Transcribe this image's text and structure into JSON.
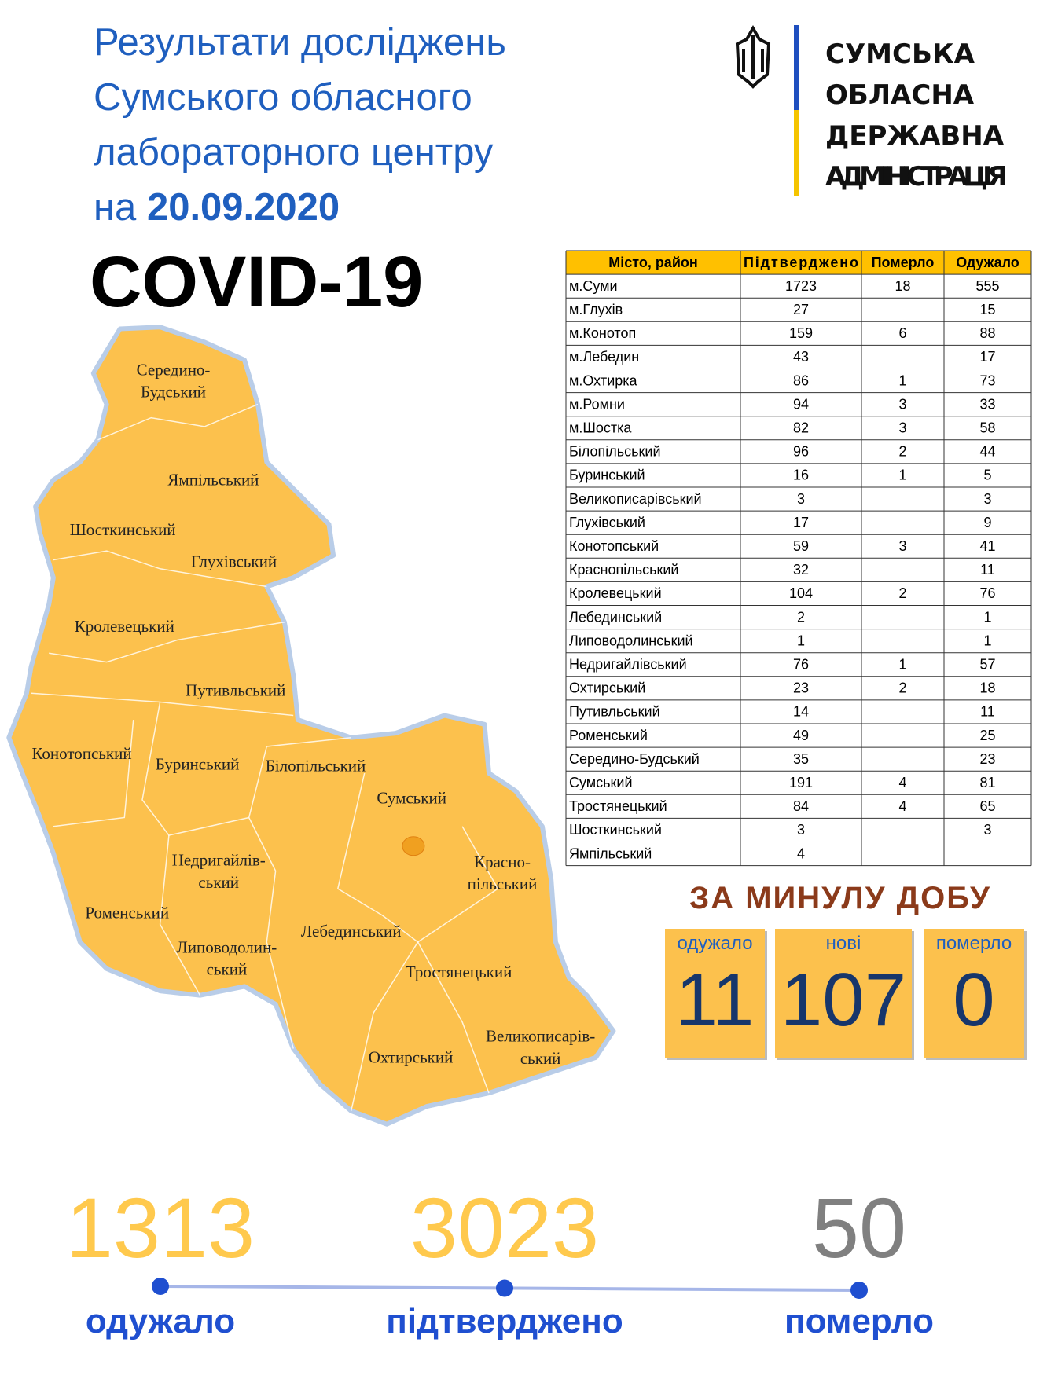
{
  "header": {
    "title_lines": [
      "Результати досліджень",
      "Сумського обласного",
      "лабораторного центру"
    ],
    "date_prefix": "на",
    "date": "20.09.2020",
    "covid": "COVID-19"
  },
  "logo": {
    "lines": [
      "СУМСЬКА",
      "ОБЛАСНА",
      "ДЕРЖАВНА",
      "АДМІНІСТРАЦІЯ"
    ]
  },
  "table": {
    "columns": [
      "Місто, район",
      "Підтверджено",
      "Померло",
      "Одужало"
    ],
    "rows": [
      [
        "м.Суми",
        1723,
        18,
        555
      ],
      [
        "м.Глухів",
        27,
        null,
        15
      ],
      [
        "м.Конотоп",
        159,
        6,
        88
      ],
      [
        "м.Лебедин",
        43,
        null,
        17
      ],
      [
        "м.Охтирка",
        86,
        1,
        73
      ],
      [
        "м.Ромни",
        94,
        3,
        33
      ],
      [
        "м.Шостка",
        82,
        3,
        58
      ],
      [
        "Білопільський",
        96,
        2,
        44
      ],
      [
        "Буринський",
        16,
        1,
        5
      ],
      [
        "Великописарівський",
        3,
        null,
        3
      ],
      [
        "Глухівський",
        17,
        null,
        9
      ],
      [
        "Конотопський",
        59,
        3,
        41
      ],
      [
        "Краснопільський",
        32,
        null,
        11
      ],
      [
        "Кролевецький",
        104,
        2,
        76
      ],
      [
        "Лебединський",
        2,
        null,
        1
      ],
      [
        "Липоводолинський",
        1,
        null,
        1
      ],
      [
        "Недригайлівський",
        76,
        1,
        57
      ],
      [
        "Охтирський",
        23,
        2,
        18
      ],
      [
        "Путивльський",
        14,
        null,
        11
      ],
      [
        "Роменський",
        49,
        null,
        25
      ],
      [
        "Середино-Будський",
        35,
        null,
        23
      ],
      [
        "Сумський",
        191,
        4,
        81
      ],
      [
        "Тростянецький",
        84,
        4,
        65
      ],
      [
        "Шосткинський",
        3,
        null,
        3
      ],
      [
        "Ямпільський",
        4,
        null,
        null
      ]
    ]
  },
  "daily": {
    "title": "ЗА МИНУЛУ ДОБУ",
    "boxes": [
      {
        "label": "одужало",
        "value": 11
      },
      {
        "label": "нові",
        "value": 107
      },
      {
        "label": "померло",
        "value": 0
      }
    ]
  },
  "totals": [
    {
      "value": 1313,
      "label": "одужало"
    },
    {
      "value": 3023,
      "label": "підтверджено"
    },
    {
      "value": 50,
      "label": "померло"
    }
  ],
  "map": {
    "labels": [
      [
        "Середино-",
        "Будський"
      ],
      [
        "Ямпільський"
      ],
      [
        "Шосткинський"
      ],
      [
        "Глухівський"
      ],
      [
        "Кролевецький"
      ],
      [
        "Путивльський"
      ],
      [
        "Конотопський"
      ],
      [
        "Буринський"
      ],
      [
        "Білопільський"
      ],
      [
        "Сумський"
      ],
      [
        "Недригайлів-",
        "ський"
      ],
      [
        "Красно-",
        "пільський"
      ],
      [
        "Роменський"
      ],
      [
        "Лебединський"
      ],
      [
        "Липоводолин-",
        "ський"
      ],
      [
        "Тростянецький"
      ],
      [
        "Великописарів-",
        "ський"
      ],
      [
        "Охтирський"
      ]
    ]
  }
}
